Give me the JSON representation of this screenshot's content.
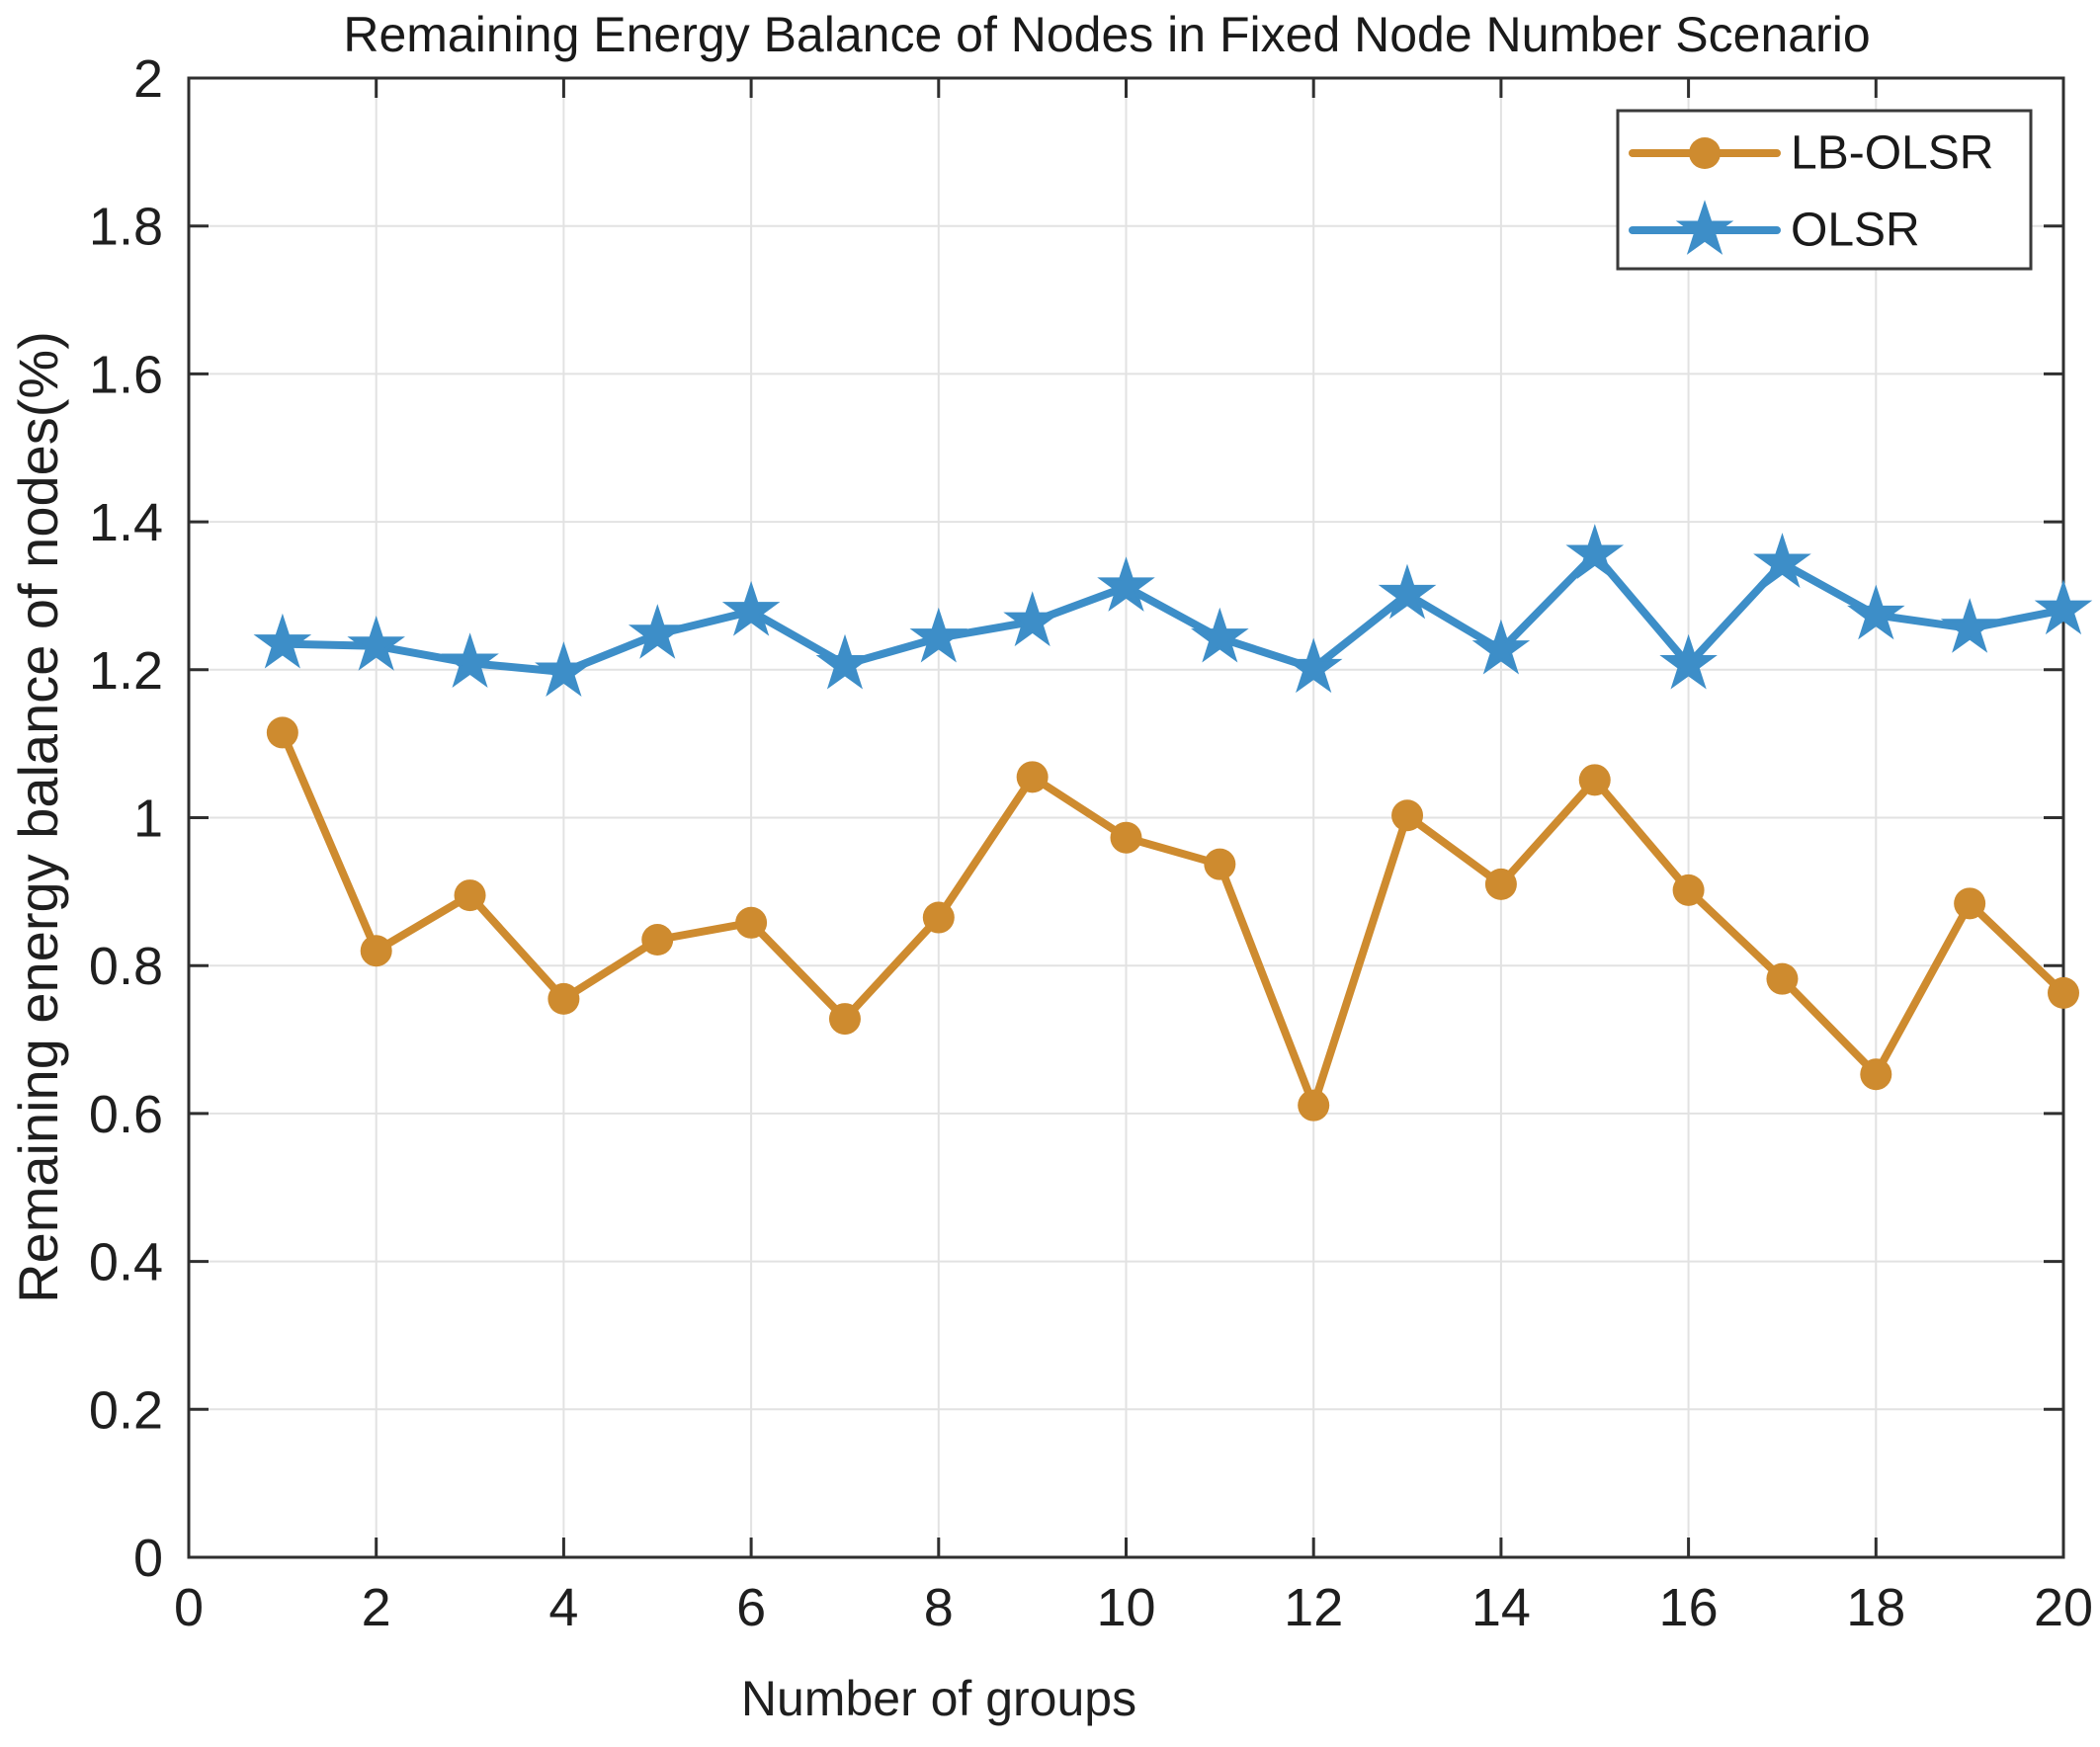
{
  "chart_data": {
    "type": "line",
    "title": "Remaining Energy Balance of Nodes in Fixed Node Number Scenario",
    "xlabel": "Number of groups",
    "ylabel": "Remaining energy balance of nodes(%)",
    "xlim": [
      0,
      20
    ],
    "ylim": [
      0,
      2
    ],
    "xticks": [
      0,
      2,
      4,
      6,
      8,
      10,
      12,
      14,
      16,
      18,
      20
    ],
    "xtick_labels": [
      "0",
      "2",
      "4",
      "6",
      "8",
      "10",
      "12",
      "14",
      "16",
      "18",
      "20"
    ],
    "yticks": [
      0,
      0.2,
      0.4,
      0.6,
      0.8,
      1,
      1.2,
      1.4,
      1.6,
      1.8,
      2
    ],
    "ytick_labels": [
      "0",
      "0.2",
      "0.4",
      "0.6",
      "0.8",
      "1",
      "1.2",
      "1.4",
      "1.6",
      "1.8",
      "2"
    ],
    "grid": true,
    "legend_position": "top-right",
    "x": [
      1,
      2,
      3,
      4,
      5,
      6,
      7,
      8,
      9,
      10,
      11,
      12,
      13,
      14,
      15,
      16,
      17,
      18,
      19,
      20
    ],
    "series": [
      {
        "name": "LB-OLSR",
        "marker": "circle",
        "color": "#CE8B2F",
        "values": [
          1.115,
          0.82,
          0.895,
          0.755,
          0.835,
          0.858,
          0.728,
          0.865,
          1.055,
          0.973,
          0.937,
          0.611,
          1.003,
          0.91,
          1.051,
          0.902,
          0.782,
          0.653,
          0.884,
          0.763
        ]
      },
      {
        "name": "OLSR",
        "marker": "pentagram",
        "color": "#3D8EC8",
        "values": [
          1.235,
          1.232,
          1.209,
          1.197,
          1.248,
          1.279,
          1.207,
          1.243,
          1.265,
          1.312,
          1.243,
          1.202,
          1.302,
          1.227,
          1.356,
          1.207,
          1.344,
          1.274,
          1.256,
          1.281
        ]
      }
    ],
    "colors": {
      "grid": "#E2E2E2",
      "axis": "#2F2F2F",
      "tick_text": "#1F1F1F",
      "background": "#FFFFFF"
    }
  }
}
